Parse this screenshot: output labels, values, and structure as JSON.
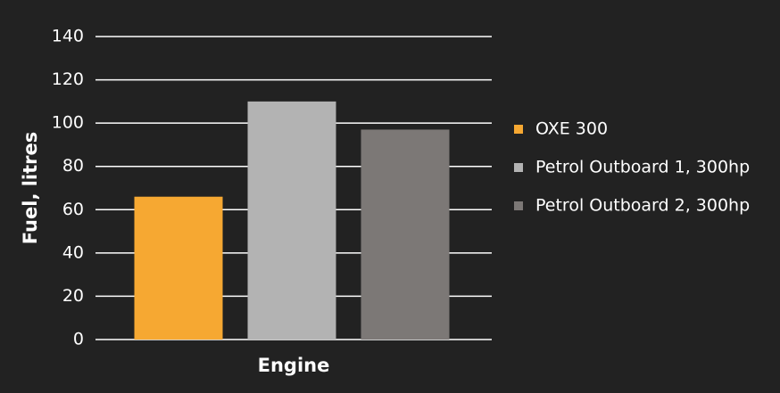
{
  "chart_data": {
    "type": "bar",
    "x_label": "Engine",
    "y_label": "Fuel, litres",
    "categories": [
      null
    ],
    "series": [
      {
        "name": "OXE 300",
        "color": "#f6a832",
        "values": [
          66
        ]
      },
      {
        "name": "Petrol Outboard 1, 300hp",
        "color": "#b3b3b3",
        "values": [
          110
        ]
      },
      {
        "name": "Petrol Outboard 2, 300hp",
        "color": "#7c7876",
        "values": [
          97
        ]
      }
    ],
    "ylim": [
      0,
      140
    ],
    "yticks": [
      0,
      20,
      40,
      60,
      80,
      100,
      120,
      140
    ],
    "grid": true,
    "legend": "right"
  }
}
